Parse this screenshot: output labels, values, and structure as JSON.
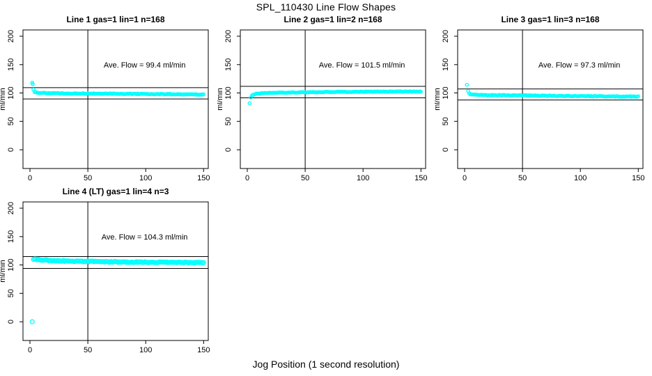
{
  "figure": {
    "title": "SPL_110430  Line Flow Shapes",
    "xlabel": "Jog Position (1 second resolution)",
    "colors": {
      "points": "#00FFFF",
      "axis": "#000000",
      "background": "#FFFFFF"
    }
  },
  "chart_data": [
    {
      "type": "scatter",
      "title": "Line 1 gas=1 lin=1 n=168",
      "ylabel": "ml/min",
      "ave_flow_text": "Ave. Flow =  99.4  ml/min",
      "ave_flow_value": 99.4,
      "annotation_xy": [
        99,
        150
      ],
      "x_ticks": [
        0,
        50,
        100,
        150
      ],
      "y_ticks": [
        0,
        50,
        100,
        150,
        200
      ],
      "xlim": [
        -6,
        154
      ],
      "ylim": [
        -33,
        211
      ],
      "grid": false,
      "ref_lines_y": [
        109.3,
        89.5
      ],
      "vline_x": 50,
      "outliers": [
        [
          2,
          118
        ],
        [
          2.4,
          115.5
        ]
      ],
      "trend_points": [
        [
          3,
          105.5
        ],
        [
          4,
          102
        ],
        [
          6,
          100.4
        ],
        [
          15,
          99.6
        ],
        [
          50,
          99.0
        ],
        [
          100,
          98.2
        ],
        [
          150,
          97.4
        ]
      ],
      "x_start": 3,
      "x_end": 150,
      "x_step": 1,
      "noise": 0.65,
      "point_radius": 2.1,
      "seed": 1
    },
    {
      "type": "scatter",
      "title": "Line 2 gas=1 lin=2 n=168",
      "ylabel": "ml/min",
      "ave_flow_text": "Ave. Flow =  101.5  ml/min",
      "ave_flow_value": 101.5,
      "annotation_xy": [
        99,
        150
      ],
      "x_ticks": [
        0,
        50,
        100,
        150
      ],
      "y_ticks": [
        0,
        50,
        100,
        150,
        200
      ],
      "xlim": [
        -6,
        154
      ],
      "ylim": [
        -33,
        211
      ],
      "grid": false,
      "ref_lines_y": [
        111.7,
        91.4
      ],
      "vline_x": 50,
      "outliers": [
        [
          2,
          82
        ]
      ],
      "trend_points": [
        [
          3,
          92.5
        ],
        [
          4,
          95
        ],
        [
          5,
          96.8
        ],
        [
          7,
          98.2
        ],
        [
          12,
          99.6
        ],
        [
          30,
          100.7
        ],
        [
          70,
          101.7
        ],
        [
          110,
          102.3
        ],
        [
          150,
          102.6
        ]
      ],
      "x_start": 3,
      "x_end": 150,
      "x_step": 1,
      "noise": 0.55,
      "point_radius": 2.1,
      "seed": 2
    },
    {
      "type": "scatter",
      "title": "Line 3 gas=1 lin=3 n=168",
      "ylabel": "ml/min",
      "ave_flow_text": "Ave. Flow =  97.3  ml/min",
      "ave_flow_value": 97.3,
      "annotation_xy": [
        99,
        150
      ],
      "x_ticks": [
        0,
        50,
        100,
        150
      ],
      "y_ticks": [
        0,
        50,
        100,
        150,
        200
      ],
      "xlim": [
        -6,
        154
      ],
      "ylim": [
        -33,
        211
      ],
      "grid": false,
      "ref_lines_y": [
        107.0,
        87.6
      ],
      "vline_x": 50,
      "outliers": [
        [
          2,
          114.5
        ]
      ],
      "trend_points": [
        [
          3,
          104
        ],
        [
          4,
          100
        ],
        [
          5,
          98.3
        ],
        [
          8,
          97.2
        ],
        [
          20,
          96.4
        ],
        [
          50,
          95.6
        ],
        [
          90,
          94.7
        ],
        [
          130,
          94.0
        ],
        [
          150,
          93.6
        ]
      ],
      "x_start": 3,
      "x_end": 150,
      "x_step": 1,
      "noise": 0.65,
      "point_radius": 2.1,
      "seed": 3
    },
    {
      "type": "scatter",
      "title": "Line 4 (LT) gas=1 lin=4 n=3",
      "ylabel": "ml/min",
      "ave_flow_text": "Ave. Flow =  104.3  ml/min",
      "ave_flow_value": 104.3,
      "annotation_xy": [
        99,
        150
      ],
      "x_ticks": [
        0,
        50,
        100,
        150
      ],
      "y_ticks": [
        0,
        50,
        100,
        150,
        200
      ],
      "xlim": [
        -6,
        154
      ],
      "ylim": [
        -33,
        211
      ],
      "grid": false,
      "ref_lines_y": [
        114.7,
        93.9
      ],
      "vline_x": 50,
      "outliers": [
        [
          2,
          0
        ]
      ],
      "trend_points": [
        [
          3,
          110.3
        ],
        [
          8,
          109.2
        ],
        [
          20,
          107.6
        ],
        [
          40,
          106.4
        ],
        [
          70,
          105.4
        ],
        [
          110,
          104.7
        ],
        [
          150,
          104.1
        ]
      ],
      "x_start": 3,
      "x_end": 150,
      "x_step": 1,
      "noise": 0.8,
      "point_radius": 2.9,
      "seed": 4
    }
  ]
}
